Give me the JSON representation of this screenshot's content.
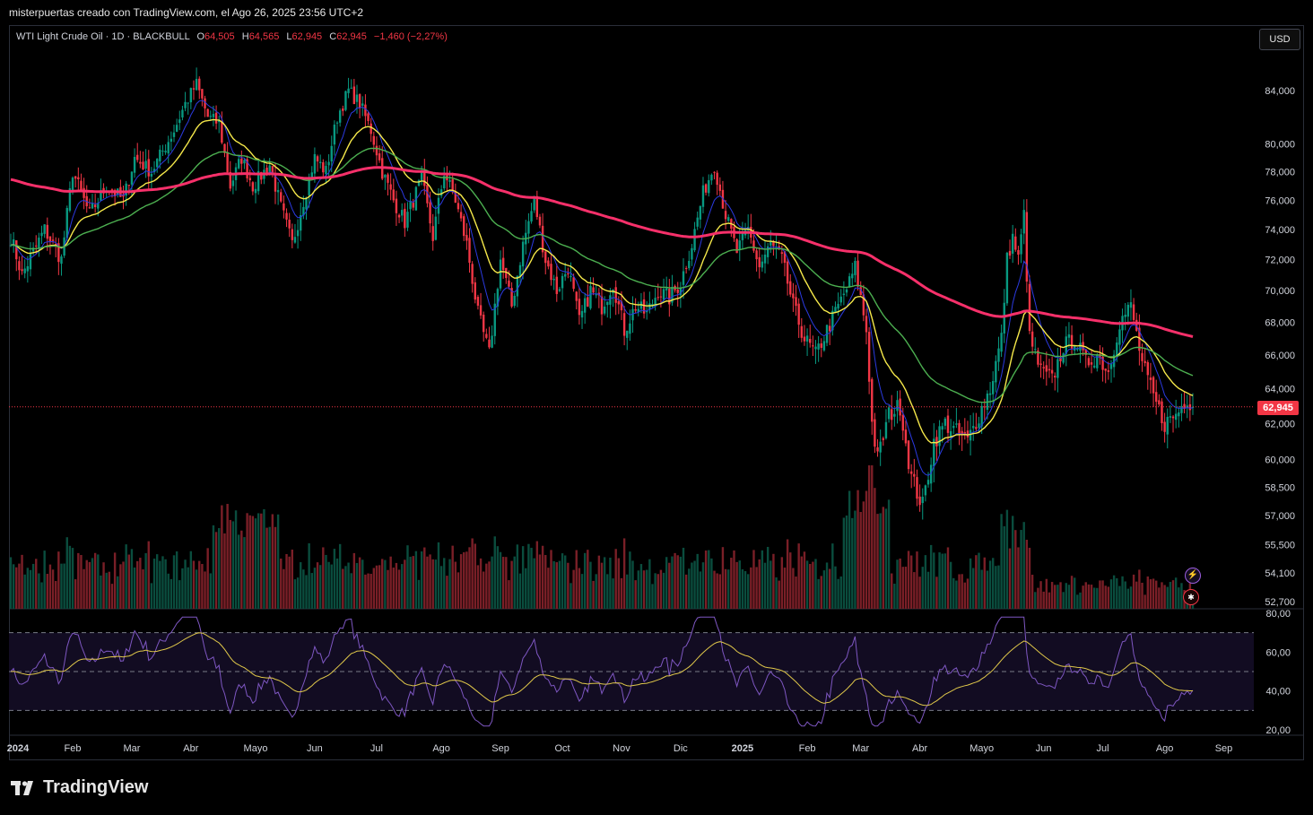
{
  "header": {
    "credit": "misterpuertas creado con TradingView.com, el Ago 26, 2025 23:56 UTC+2"
  },
  "legend": {
    "symbol": "WTI Light Crude Oil · 1D · BLACKBULL",
    "open_label": "O",
    "open": "64,505",
    "high_label": "H",
    "high": "64,565",
    "low_label": "L",
    "low": "62,945",
    "close_label": "C",
    "close": "62,945",
    "change": "−1,460 (−2,27%)"
  },
  "currency": "USD",
  "last_price_label": "62,945",
  "brand": "TradingView",
  "colors": {
    "up": "#089981",
    "down": "#f23645",
    "ema_fast": "#2b3ae0",
    "ema_mid": "#f5e84a",
    "ema_slow": "#4caf50",
    "ema_200": "#f6306a",
    "rsi": "#7e57c2",
    "rsi_ma": "#e0c84a",
    "last_price": "#f23645"
  },
  "icons": {
    "event_1": "lightning-bolt-icon",
    "event_2": "us-flag-icon",
    "logo": "tradingview-logo-icon"
  },
  "chart_data": {
    "type": "candlestick",
    "title": "WTI Light Crude Oil · 1D · BLACKBULL",
    "price_axis": {
      "scale": "log",
      "ticks": [
        "84,000",
        "80,000",
        "78,000",
        "76,000",
        "74,000",
        "72,000",
        "70,000",
        "68,000",
        "66,000",
        "64,000",
        "62,000",
        "60,000",
        "58,500",
        "57,000",
        "55,500",
        "54,100",
        "52,700"
      ],
      "tick_values": [
        84,
        80,
        78,
        76,
        74,
        72,
        70,
        68,
        66,
        64,
        62,
        60,
        58.5,
        57,
        55.5,
        54.1,
        52.7
      ]
    },
    "time_axis": {
      "labels": [
        "2024",
        "Feb",
        "Mar",
        "Abr",
        "Mayo",
        "Jun",
        "Jul",
        "Ago",
        "Sep",
        "Oct",
        "Nov",
        "Dic",
        "2025",
        "Feb",
        "Mar",
        "Abr",
        "Mayo",
        "Jun",
        "Jul",
        "Ago",
        "Sep"
      ],
      "bold": [
        "2024",
        "2025"
      ]
    },
    "last_price": 62.945,
    "price_anchors": [
      [
        0,
        73.5
      ],
      [
        4,
        71
      ],
      [
        8,
        72.5
      ],
      [
        12,
        74
      ],
      [
        18,
        72
      ],
      [
        22,
        78
      ],
      [
        28,
        75
      ],
      [
        34,
        77
      ],
      [
        40,
        76
      ],
      [
        44,
        79
      ],
      [
        50,
        78
      ],
      [
        58,
        81
      ],
      [
        62,
        83
      ],
      [
        66,
        84.5
      ],
      [
        70,
        82
      ],
      [
        74,
        81.5
      ],
      [
        78,
        77
      ],
      [
        82,
        79
      ],
      [
        86,
        77
      ],
      [
        92,
        78.5
      ],
      [
        96,
        75.5
      ],
      [
        100,
        73
      ],
      [
        104,
        76
      ],
      [
        108,
        79
      ],
      [
        112,
        78
      ],
      [
        116,
        82
      ],
      [
        120,
        84
      ],
      [
        124,
        83
      ],
      [
        128,
        81
      ],
      [
        132,
        78
      ],
      [
        136,
        76
      ],
      [
        140,
        74.5
      ],
      [
        146,
        77.5
      ],
      [
        150,
        73.5
      ],
      [
        154,
        78
      ],
      [
        158,
        76
      ],
      [
        162,
        73
      ],
      [
        166,
        68.5
      ],
      [
        170,
        66
      ],
      [
        174,
        72
      ],
      [
        178,
        69
      ],
      [
        182,
        73
      ],
      [
        186,
        76
      ],
      [
        190,
        72
      ],
      [
        194,
        70
      ],
      [
        198,
        71.5
      ],
      [
        202,
        68
      ],
      [
        206,
        70
      ],
      [
        210,
        69
      ],
      [
        214,
        70.5
      ],
      [
        218,
        67.5
      ],
      [
        222,
        69
      ],
      [
        226,
        68.5
      ],
      [
        230,
        70
      ],
      [
        234,
        69.5
      ],
      [
        238,
        70.5
      ],
      [
        242,
        73
      ],
      [
        246,
        76.5
      ],
      [
        250,
        78.5
      ],
      [
        254,
        75
      ],
      [
        258,
        72.5
      ],
      [
        262,
        74
      ],
      [
        266,
        71.5
      ],
      [
        270,
        73
      ],
      [
        274,
        72
      ],
      [
        278,
        69
      ],
      [
        282,
        67
      ],
      [
        286,
        66
      ],
      [
        290,
        67.5
      ],
      [
        294,
        69
      ],
      [
        298,
        70.5
      ],
      [
        300,
        71.5
      ],
      [
        304,
        67.5
      ],
      [
        306,
        62
      ],
      [
        308,
        60
      ],
      [
        312,
        62.5
      ],
      [
        316,
        63
      ],
      [
        320,
        59
      ],
      [
        324,
        57.5
      ],
      [
        328,
        61
      ],
      [
        332,
        62
      ],
      [
        336,
        61.5
      ],
      [
        340,
        61
      ],
      [
        344,
        62.5
      ],
      [
        348,
        64
      ],
      [
        352,
        67
      ],
      [
        354,
        72
      ],
      [
        356,
        73.5
      ],
      [
        358,
        72
      ],
      [
        360,
        75
      ],
      [
        362,
        67
      ],
      [
        366,
        65
      ],
      [
        370,
        64.5
      ],
      [
        374,
        66.5
      ],
      [
        378,
        67
      ],
      [
        382,
        65.5
      ],
      [
        386,
        66
      ],
      [
        390,
        65
      ],
      [
        394,
        68
      ],
      [
        398,
        69
      ],
      [
        402,
        65.5
      ],
      [
        406,
        63.5
      ],
      [
        410,
        62
      ],
      [
        414,
        62.5
      ],
      [
        418,
        63.5
      ],
      [
        420,
        62.945
      ]
    ],
    "series": [
      {
        "name": "",
        "kind": "ema",
        "period": 9
      },
      {
        "name": "",
        "kind": "ema",
        "period": 21
      },
      {
        "name": "",
        "kind": "ema",
        "period": 55
      },
      {
        "name": "",
        "kind": "ema",
        "period": 200
      }
    ],
    "volume": {
      "shown": true
    },
    "rsi": {
      "ticks": [
        "80,00",
        "60,00",
        "40,00",
        "20,00"
      ],
      "tick_values": [
        80,
        60,
        40,
        20
      ],
      "bands": [
        70,
        50,
        30
      ],
      "ylim": [
        20,
        80
      ]
    }
  }
}
